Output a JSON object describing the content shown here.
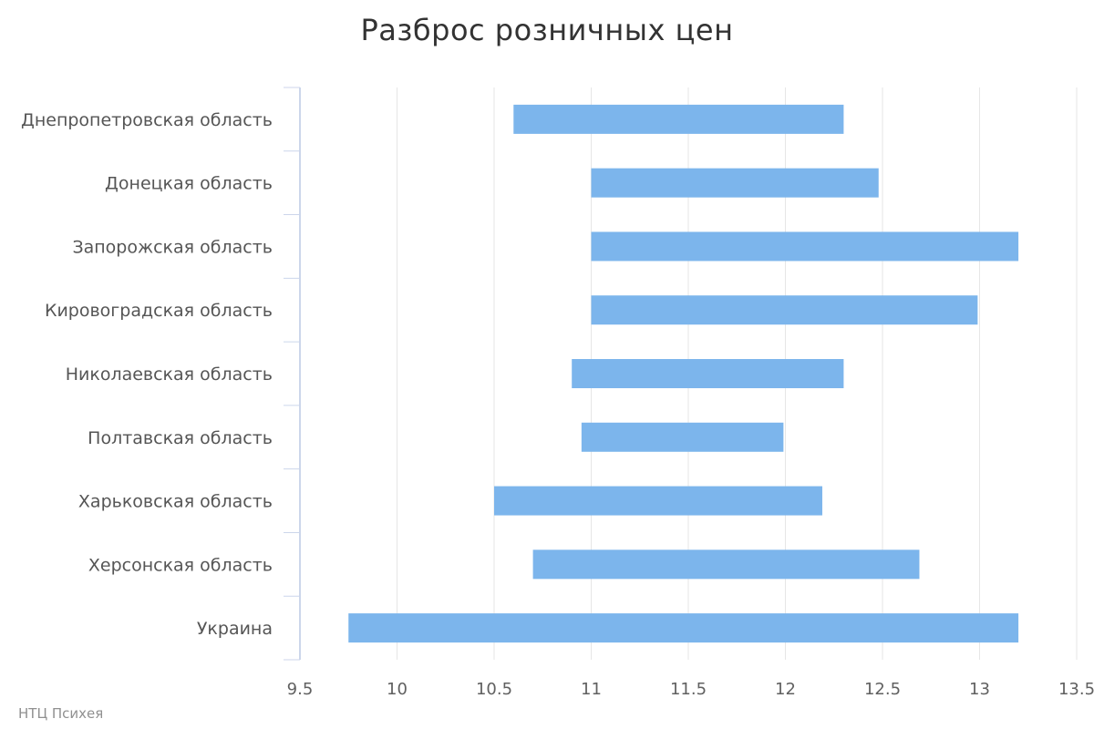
{
  "chart_data": {
    "type": "bar",
    "subtype": "range",
    "orientation": "horizontal",
    "title": "Разброс розничных цен",
    "categories": [
      "Днепропетровская область",
      "Донецкая область",
      "Запорожская область",
      "Кировоградская область",
      "Николаевская область",
      "Полтавская область",
      "Харьковская область",
      "Херсонская область",
      "Украина"
    ],
    "series": [
      {
        "low": [
          10.6,
          11.0,
          11.0,
          11.0,
          10.9,
          10.95,
          10.5,
          10.7,
          9.75
        ],
        "high": [
          12.3,
          12.48,
          13.2,
          12.99,
          12.3,
          11.99,
          12.19,
          12.69,
          13.2
        ]
      }
    ],
    "xlim": [
      9.5,
      13.5
    ],
    "x_ticks": [
      "9.5",
      "10",
      "10.5",
      "11",
      "11.5",
      "12",
      "12.5",
      "13",
      "13.5"
    ],
    "grid": true,
    "bar_color": "#7cb5ec"
  },
  "credits": "НТЦ Психея"
}
